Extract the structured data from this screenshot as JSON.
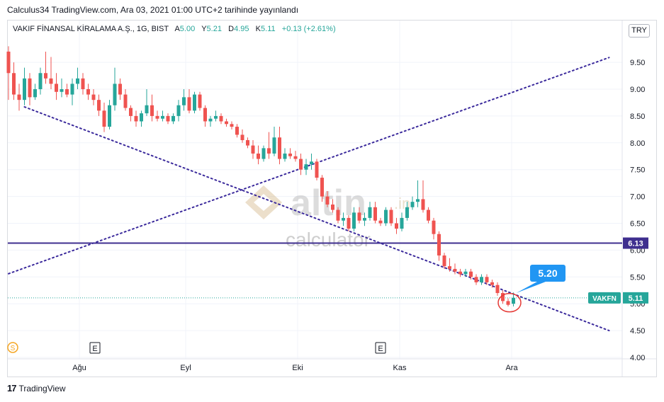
{
  "header": {
    "published": "Calculus34 TradingView.com, Ara 03, 2021 01:00 UTC+2 tarihinde yayınlandı"
  },
  "legend": {
    "symbol": "VAKIF FİNANSAL KİRALAMA A.Ş., 1G, BIST",
    "open_label": "A",
    "open": "5.00",
    "high_label": "Y",
    "high": "5.21",
    "low_label": "D",
    "low": "4.95",
    "close_label": "K",
    "close": "5.11",
    "change": "+0.13 (+2.61%)"
  },
  "currency": "TRY",
  "footer": {
    "logo": "17",
    "brand": "TradingView"
  },
  "watermark": {
    "brand": "altin",
    "suffix": ".in",
    "sub": "calculator"
  },
  "colors": {
    "up": "#26a69a",
    "down": "#ef5350",
    "trend": "#3b2a9c",
    "hline": "#3f2f8f",
    "label_blue": "#2196f3",
    "ticker_bg": "#26a69a"
  },
  "chart_data": {
    "type": "candlestick",
    "symbol": "VAKFN",
    "timeframe": "1G",
    "exchange": "BIST",
    "y_ticks": [
      "9.50",
      "9.00",
      "8.50",
      "8.00",
      "7.50",
      "7.00",
      "6.50",
      "6.00",
      "5.50",
      "5.00",
      "4.50",
      "4.00"
    ],
    "x_ticks": [
      "Ağu",
      "Eyl",
      "Eki",
      "Kas",
      "Ara"
    ],
    "event_markers": [
      "E",
      "E"
    ],
    "dividend_marker": "S",
    "horizontal_line": {
      "value": 6.13,
      "label": "6.13"
    },
    "last_price": {
      "ticker": "VAKFN",
      "value": 5.11,
      "label": "5.11"
    },
    "callout": {
      "label": "5.20"
    },
    "trend_lines": [
      {
        "style": "dotted",
        "from": [
          0,
          5.56
        ],
        "to": [
          113,
          9.59
        ]
      },
      {
        "style": "dotted",
        "from": [
          3,
          8.67
        ],
        "to": [
          113,
          4.5
        ]
      }
    ],
    "candles": [
      [
        9.7,
        9.8,
        8.8,
        9.3
      ],
      [
        9.3,
        9.5,
        8.8,
        8.9
      ],
      [
        8.9,
        9.1,
        8.6,
        8.8
      ],
      [
        8.8,
        9.4,
        8.7,
        9.2
      ],
      [
        9.2,
        9.3,
        8.7,
        8.85
      ],
      [
        8.85,
        9.1,
        8.8,
        9.0
      ],
      [
        9.0,
        9.4,
        8.9,
        9.3
      ],
      [
        9.3,
        9.7,
        9.1,
        9.2
      ],
      [
        9.2,
        9.6,
        9.0,
        9.1
      ],
      [
        9.1,
        9.3,
        8.8,
        8.95
      ],
      [
        8.95,
        9.2,
        8.85,
        9.0
      ],
      [
        9.0,
        9.1,
        8.85,
        8.9
      ],
      [
        8.9,
        9.2,
        8.7,
        9.1
      ],
      [
        9.1,
        9.4,
        9.0,
        9.2
      ],
      [
        9.2,
        9.3,
        8.9,
        9.0
      ],
      [
        9.0,
        9.1,
        8.8,
        8.9
      ],
      [
        8.9,
        9.0,
        8.7,
        8.8
      ],
      [
        8.8,
        8.9,
        8.5,
        8.6
      ],
      [
        8.6,
        8.75,
        8.2,
        8.3
      ],
      [
        8.3,
        8.8,
        8.25,
        8.7
      ],
      [
        8.7,
        9.4,
        8.6,
        9.1
      ],
      [
        9.1,
        9.2,
        8.8,
        8.9
      ],
      [
        8.9,
        9.0,
        8.6,
        8.65
      ],
      [
        8.65,
        8.7,
        8.4,
        8.5
      ],
      [
        8.5,
        8.6,
        8.3,
        8.4
      ],
      [
        8.4,
        8.6,
        8.3,
        8.55
      ],
      [
        8.55,
        9.0,
        8.5,
        8.7
      ],
      [
        8.7,
        8.9,
        8.4,
        8.5
      ],
      [
        8.5,
        8.6,
        8.4,
        8.45
      ],
      [
        8.45,
        8.6,
        8.4,
        8.5
      ],
      [
        8.5,
        8.55,
        8.35,
        8.4
      ],
      [
        8.4,
        8.55,
        8.35,
        8.5
      ],
      [
        8.5,
        8.8,
        8.4,
        8.7
      ],
      [
        8.7,
        9.0,
        8.6,
        8.85
      ],
      [
        8.85,
        9.0,
        8.55,
        8.6
      ],
      [
        8.6,
        8.95,
        8.55,
        8.9
      ],
      [
        8.9,
        8.95,
        8.6,
        8.65
      ],
      [
        8.65,
        8.7,
        8.3,
        8.4
      ],
      [
        8.4,
        8.5,
        8.3,
        8.45
      ],
      [
        8.45,
        8.6,
        8.4,
        8.5
      ],
      [
        8.5,
        8.55,
        8.35,
        8.4
      ],
      [
        8.4,
        8.45,
        8.3,
        8.35
      ],
      [
        8.35,
        8.4,
        8.25,
        8.3
      ],
      [
        8.3,
        8.35,
        8.1,
        8.15
      ],
      [
        8.15,
        8.25,
        8.0,
        8.05
      ],
      [
        8.05,
        8.1,
        7.9,
        7.95
      ],
      [
        7.95,
        8.05,
        7.7,
        7.8
      ],
      [
        7.8,
        7.95,
        7.6,
        7.7
      ],
      [
        7.7,
        7.95,
        7.65,
        7.9
      ],
      [
        7.9,
        8.2,
        7.7,
        7.8
      ],
      [
        7.8,
        8.3,
        7.75,
        8.1
      ],
      [
        8.1,
        8.3,
        7.6,
        7.7
      ],
      [
        7.7,
        7.9,
        7.65,
        7.8
      ],
      [
        7.8,
        7.9,
        7.7,
        7.75
      ],
      [
        7.75,
        7.85,
        7.65,
        7.7
      ],
      [
        7.7,
        7.8,
        7.4,
        7.5
      ],
      [
        7.5,
        7.7,
        7.4,
        7.6
      ],
      [
        7.6,
        7.8,
        7.5,
        7.65
      ],
      [
        7.65,
        7.7,
        7.3,
        7.35
      ],
      [
        7.35,
        7.4,
        6.9,
        7.0
      ],
      [
        7.0,
        7.1,
        6.8,
        6.85
      ],
      [
        6.85,
        6.95,
        6.7,
        6.75
      ],
      [
        6.75,
        6.8,
        6.5,
        6.55
      ],
      [
        6.55,
        6.7,
        6.45,
        6.6
      ],
      [
        6.6,
        6.65,
        6.35,
        6.4
      ],
      [
        6.4,
        6.8,
        6.35,
        6.7
      ],
      [
        6.7,
        6.8,
        6.5,
        6.55
      ],
      [
        6.55,
        6.7,
        6.45,
        6.6
      ],
      [
        6.6,
        6.9,
        6.55,
        6.8
      ],
      [
        6.8,
        6.9,
        6.5,
        6.55
      ],
      [
        6.55,
        6.6,
        6.45,
        6.5
      ],
      [
        6.5,
        6.8,
        6.45,
        6.75
      ],
      [
        6.75,
        6.8,
        6.45,
        6.5
      ],
      [
        6.5,
        6.6,
        6.3,
        6.4
      ],
      [
        6.4,
        6.7,
        6.35,
        6.6
      ],
      [
        6.6,
        6.9,
        6.55,
        6.8
      ],
      [
        6.8,
        7.0,
        6.75,
        6.9
      ],
      [
        6.9,
        7.3,
        6.8,
        6.95
      ],
      [
        6.95,
        7.3,
        6.7,
        6.75
      ],
      [
        6.75,
        6.8,
        6.5,
        6.55
      ],
      [
        6.55,
        6.6,
        6.2,
        6.3
      ],
      [
        6.3,
        6.35,
        5.8,
        5.9
      ],
      [
        5.9,
        5.95,
        5.65,
        5.7
      ],
      [
        5.7,
        5.85,
        5.6,
        5.65
      ],
      [
        5.65,
        5.75,
        5.55,
        5.6
      ],
      [
        5.6,
        5.65,
        5.5,
        5.55
      ],
      [
        5.55,
        5.65,
        5.5,
        5.6
      ],
      [
        5.6,
        5.65,
        5.45,
        5.5
      ],
      [
        5.5,
        5.55,
        5.35,
        5.4
      ],
      [
        5.4,
        5.55,
        5.35,
        5.5
      ],
      [
        5.5,
        5.55,
        5.35,
        5.4
      ],
      [
        5.4,
        5.45,
        5.3,
        5.35
      ],
      [
        5.35,
        5.4,
        5.15,
        5.2
      ],
      [
        5.2,
        5.25,
        5.0,
        5.05
      ],
      [
        5.05,
        5.1,
        4.95,
        4.98
      ],
      [
        5.0,
        5.21,
        4.95,
        5.11
      ]
    ]
  }
}
